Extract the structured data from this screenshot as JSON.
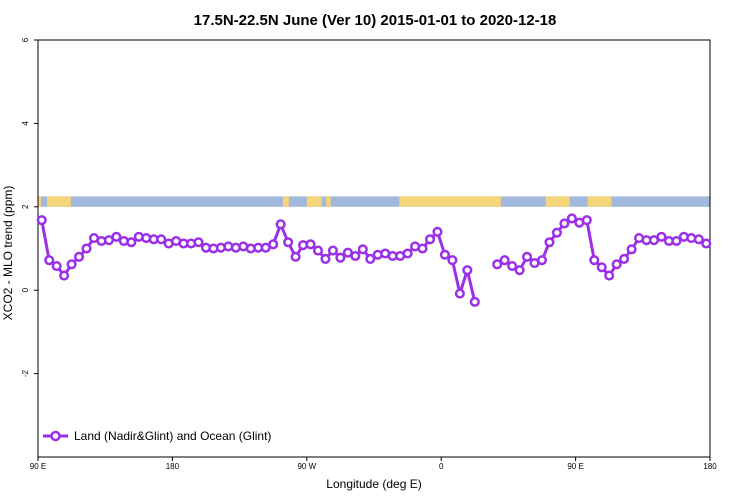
{
  "chart_data": {
    "type": "line",
    "title": "17.5N-22.5N June (Ver 10)   2015-01-01 to 2020-12-18",
    "xlabel": "Longitude (deg E)",
    "ylabel": "XCO2 - MLO trend (ppm)",
    "xlim": [
      -45,
      180
    ],
    "ylim": [
      -4,
      6
    ],
    "grid": false,
    "legend_position": "bottom-left",
    "x_ticks": [
      {
        "value": -45,
        "label": "90 E"
      },
      {
        "value": 0,
        "label": "180"
      },
      {
        "value": 45,
        "label": "90 W"
      },
      {
        "value": 90,
        "label": "0"
      },
      {
        "value": 135,
        "label": "90 E"
      },
      {
        "value": 180,
        "label": "180"
      }
    ],
    "y_ticks": [
      {
        "value": -2,
        "label": "-2"
      },
      {
        "value": 0,
        "label": "0"
      },
      {
        "value": 2,
        "label": "2"
      },
      {
        "value": 4,
        "label": "4"
      },
      {
        "value": 6,
        "label": "6"
      }
    ],
    "land_ocean_band": {
      "y_range": [
        2.0,
        2.25
      ],
      "ocean_color": "#a3b8dd",
      "land_color": "#f5d57a",
      "land_segments": [
        [
          -45.0,
          -44.0
        ],
        [
          -42.0,
          -34.0
        ],
        [
          37.0,
          39.0
        ],
        [
          45.0,
          50.0
        ],
        [
          51.5,
          53.0
        ],
        [
          76.0,
          110.0
        ],
        [
          125.0,
          133.0
        ],
        [
          139.0,
          147.0
        ]
      ]
    },
    "series": [
      {
        "name": "Land (Nadir&Glint) and Ocean (Glint)",
        "color": "#9b30e8",
        "x": [
          -43.75,
          -41.25,
          -38.75,
          -36.25,
          -33.75,
          -31.25,
          -28.75,
          -26.25,
          -23.75,
          -21.25,
          -18.75,
          -16.25,
          -13.75,
          -11.25,
          -8.75,
          -6.25,
          -3.75,
          -1.25,
          1.25,
          3.75,
          6.25,
          8.75,
          11.25,
          13.75,
          16.25,
          18.75,
          21.25,
          23.75,
          26.25,
          28.75,
          31.25,
          33.75,
          36.25,
          38.75,
          41.25,
          43.75,
          46.25,
          48.75,
          51.25,
          53.75,
          56.25,
          58.75,
          61.25,
          63.75,
          66.25,
          68.75,
          71.25,
          73.75,
          76.25,
          78.75,
          81.25,
          83.75,
          86.25,
          88.75,
          91.25,
          93.75,
          96.25,
          98.75,
          101.25,
          103.75,
          106.25,
          108.75,
          111.25,
          113.75,
          116.25,
          118.75,
          121.25,
          123.75,
          126.25,
          128.75,
          131.25,
          133.75,
          136.25,
          138.75,
          141.25,
          143.75,
          146.25,
          148.75,
          151.25,
          153.75,
          156.25,
          158.75,
          161.25,
          163.75,
          166.25,
          168.75,
          171.25,
          173.75,
          176.25,
          178.75
        ],
        "y": [
          1.68,
          0.72,
          0.58,
          0.35,
          0.62,
          0.8,
          1.0,
          1.25,
          1.18,
          1.2,
          1.28,
          1.18,
          1.15,
          1.28,
          1.25,
          1.22,
          1.22,
          1.12,
          1.18,
          1.12,
          1.12,
          1.15,
          1.02,
          1.0,
          1.02,
          1.05,
          1.02,
          1.05,
          1.0,
          1.02,
          1.02,
          1.1,
          1.58,
          1.15,
          0.8,
          1.08,
          1.1,
          0.95,
          0.75,
          0.95,
          0.78,
          0.9,
          0.82,
          0.98,
          0.75,
          0.85,
          0.88,
          0.82,
          0.82,
          0.88,
          1.05,
          1.0,
          1.22,
          1.4,
          0.85,
          0.72,
          -0.08,
          0.48,
          -0.28,
          null,
          null,
          0.62,
          0.72,
          0.58,
          0.48,
          0.8,
          0.65,
          0.72,
          1.15,
          1.38,
          1.6,
          1.72,
          1.62,
          1.68,
          0.72,
          0.55,
          0.35,
          0.62,
          0.75,
          0.98,
          1.25,
          1.2,
          1.2,
          1.28,
          1.18,
          1.18,
          1.28,
          1.25,
          1.22,
          1.12
        ]
      }
    ]
  }
}
